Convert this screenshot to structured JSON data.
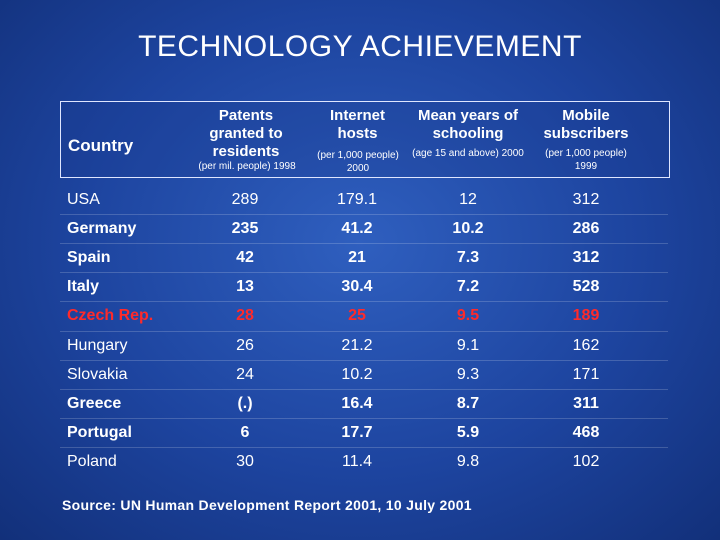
{
  "title": "TECHNOLOGY ACHIEVEMENT",
  "table": {
    "headers": [
      {
        "label": "Country",
        "sub": ""
      },
      {
        "label": "Patents granted to residents",
        "sub": "(per mil. people) 1998"
      },
      {
        "label": "Internet hosts",
        "sub": "(per 1,000 people) 2000"
      },
      {
        "label": "Mean years of schooling",
        "sub": "(age 15 and above) 2000"
      },
      {
        "label": "Mobile subscribers",
        "sub": "(per 1,000 people) 1999"
      }
    ],
    "rows": [
      {
        "country": "USA",
        "patents": "289",
        "internet": "179.1",
        "schooling": "12",
        "mobile": "312"
      },
      {
        "country": "Germany",
        "patents": "235",
        "internet": "41.2",
        "schooling": "10.2",
        "mobile": "286"
      },
      {
        "country": "Spain",
        "patents": "42",
        "internet": "21",
        "schooling": "7.3",
        "mobile": "312"
      },
      {
        "country": "Italy",
        "patents": "13",
        "internet": "30.4",
        "schooling": "7.2",
        "mobile": "528"
      },
      {
        "country": "Czech Rep.",
        "patents": "28",
        "internet": "25",
        "schooling": "9.5",
        "mobile": "189"
      },
      {
        "country": "Hungary",
        "patents": "26",
        "internet": "21.2",
        "schooling": "9.1",
        "mobile": "162"
      },
      {
        "country": "Slovakia",
        "patents": "24",
        "internet": "10.2",
        "schooling": "9.3",
        "mobile": "171"
      },
      {
        "country": "Greece",
        "patents": "(.)",
        "internet": "16.4",
        "schooling": "8.7",
        "mobile": "311"
      },
      {
        "country": "Portugal",
        "patents": "6",
        "internet": "17.7",
        "schooling": "5.9",
        "mobile": "468"
      },
      {
        "country": "Poland",
        "patents": "30",
        "internet": "11.4",
        "schooling": "9.8",
        "mobile": "102"
      }
    ]
  },
  "highlight_color": "#ff2a2a",
  "source": "Source: UN Human Development Report 2001, 10 July 2001"
}
